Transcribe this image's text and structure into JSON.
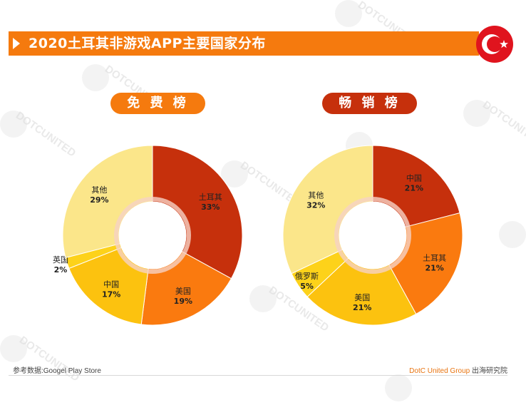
{
  "title": "2020土耳其非游戏APP主要国家分布",
  "watermark": "DOTCUNITED",
  "colors": {
    "accent": "#f57a0e",
    "dark_red": "#c6300c",
    "orange": "#fa7a0f",
    "amber": "#fcc20f",
    "yellow": "#fdd21a",
    "light_yellow": "#fbe68a"
  },
  "chart_data": [
    {
      "type": "pie",
      "title": "免 费 榜",
      "slices": [
        {
          "label": "土耳其",
          "value": 33,
          "display": "33%",
          "color": "#c6300c"
        },
        {
          "label": "美国",
          "value": 19,
          "display": "19%",
          "color": "#fa7a0f"
        },
        {
          "label": "中国",
          "value": 17,
          "display": "17%",
          "color": "#fcc20f"
        },
        {
          "label": "英国",
          "value": 2,
          "display": "2%",
          "color": "#fdd21a"
        },
        {
          "label": "其他",
          "value": 29,
          "display": "29%",
          "color": "#fbe68a"
        }
      ]
    },
    {
      "type": "pie",
      "title": "畅 销 榜",
      "slices": [
        {
          "label": "中国",
          "value": 21,
          "display": "21%",
          "color": "#c6300c"
        },
        {
          "label": "土耳其",
          "value": 21,
          "display": "21%",
          "color": "#fa7a0f"
        },
        {
          "label": "美国",
          "value": 21,
          "display": "21%",
          "color": "#fcc20f"
        },
        {
          "label": "俄罗斯",
          "value": 5,
          "display": "5%",
          "color": "#fdd21a"
        },
        {
          "label": "其他",
          "value": 32,
          "display": "32%",
          "color": "#fbe68a"
        }
      ]
    }
  ],
  "footer": {
    "source": "参考数据:Googel Play Store",
    "brand": "DotC United Group",
    "brand_suffix": " 出海研究院"
  }
}
